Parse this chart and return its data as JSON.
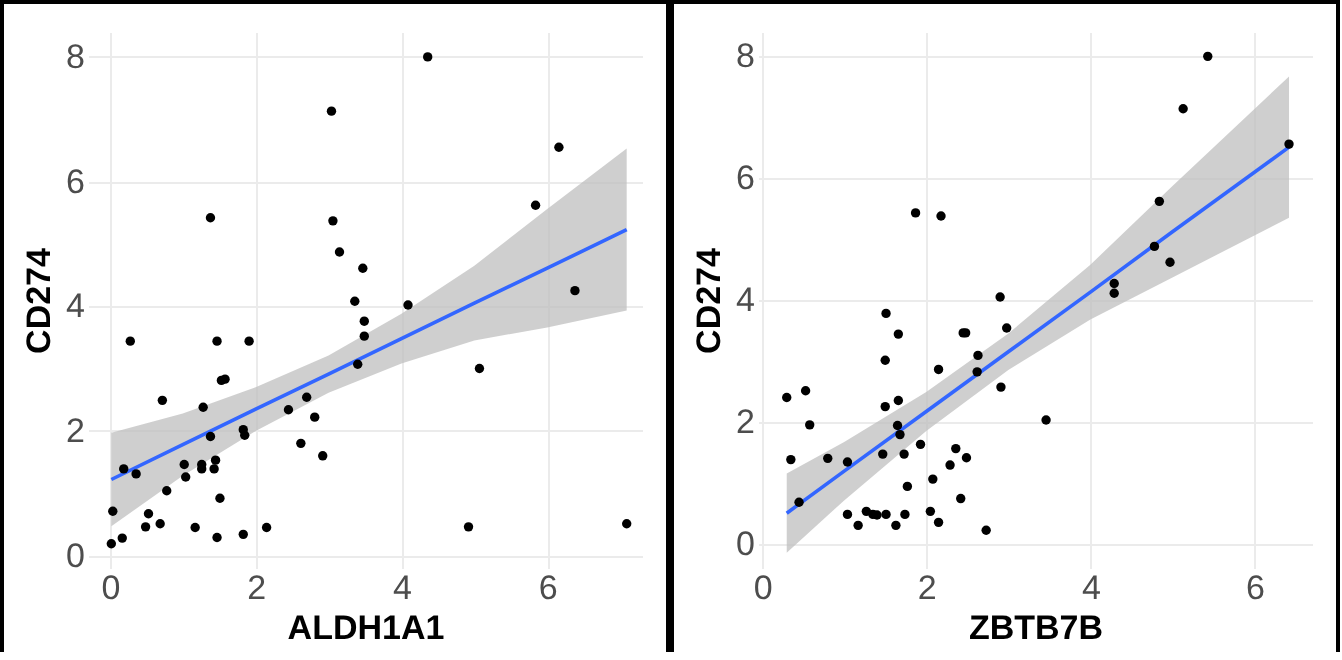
{
  "chart_data": [
    {
      "type": "scatter",
      "xlabel": "ALDH1A1",
      "ylabel": "CD274",
      "xlim": [
        -0.3,
        7.3
      ],
      "ylim": [
        -0.2,
        8.4
      ],
      "xticks": [
        0,
        2,
        4,
        6
      ],
      "yticks": [
        0,
        2,
        4,
        6,
        8
      ],
      "grid": true,
      "series": [
        {
          "type": "scatter",
          "marker": "circle",
          "color": "#000000",
          "x": [
            0.02,
            0.04,
            0.17,
            0.19,
            0.28,
            0.36,
            0.49,
            0.53,
            0.69,
            0.72,
            0.78,
            1.02,
            1.04,
            1.17,
            1.28,
            1.26,
            1.26,
            1.38,
            1.38,
            1.43,
            1.45,
            1.47,
            1.47,
            1.51,
            1.53,
            1.58,
            1.83,
            1.85,
            1.83,
            1.91,
            2.15,
            2.45,
            2.62,
            2.7,
            2.81,
            2.92,
            3.04,
            3.06,
            3.15,
            3.36,
            3.4,
            3.47,
            3.49,
            3.49,
            4.09,
            4.36,
            4.92,
            5.07,
            5.84,
            6.16,
            6.38,
            7.09
          ],
          "values": [
            0.19,
            0.71,
            0.28,
            1.39,
            3.44,
            1.31,
            0.46,
            0.67,
            0.51,
            2.49,
            1.04,
            1.46,
            1.26,
            0.45,
            2.38,
            1.39,
            1.46,
            5.42,
            1.91,
            1.39,
            1.53,
            3.44,
            0.29,
            0.92,
            2.81,
            2.83,
            2.02,
            1.93,
            0.34,
            3.44,
            0.45,
            2.34,
            1.8,
            2.54,
            2.22,
            1.6,
            7.13,
            5.37,
            4.87,
            4.08,
            3.07,
            4.61,
            3.76,
            3.52,
            4.02,
            8.0,
            0.46,
            3.0,
            5.62,
            6.55,
            4.25,
            0.51
          ]
        },
        {
          "type": "line",
          "color": "#3366ff",
          "x": [
            0.02,
            1,
            2,
            3,
            4,
            5,
            6,
            7.09
          ],
          "values": [
            1.22,
            1.78,
            2.35,
            2.91,
            3.48,
            4.05,
            4.61,
            5.23
          ],
          "lower": [
            0.47,
            1.28,
            2.0,
            2.61,
            3.08,
            3.45,
            3.66,
            3.93
          ],
          "upper": [
            1.97,
            2.28,
            2.7,
            3.21,
            3.88,
            4.65,
            5.56,
            6.53
          ]
        }
      ]
    },
    {
      "type": "scatter",
      "xlabel": "ZBTB7B",
      "ylabel": "CD274",
      "xlim": [
        -0.05,
        6.7
      ],
      "ylim": [
        -0.4,
        8.4
      ],
      "xticks": [
        0,
        2,
        4,
        6
      ],
      "yticks": [
        0,
        2,
        4,
        6,
        8
      ],
      "grid": true,
      "series": [
        {
          "type": "scatter",
          "marker": "circle",
          "color": "#000000",
          "x": [
            0.3,
            0.35,
            0.45,
            0.53,
            0.58,
            0.8,
            1.04,
            1.04,
            1.17,
            1.27,
            1.35,
            1.4,
            1.47,
            1.5,
            1.51,
            1.5,
            1.51,
            1.63,
            1.65,
            1.66,
            1.66,
            1.68,
            1.73,
            1.74,
            1.77,
            1.87,
            1.93,
            2.05,
            2.08,
            2.15,
            2.15,
            2.18,
            2.29,
            2.36,
            2.42,
            2.45,
            2.48,
            2.49,
            2.63,
            2.62,
            2.73,
            2.9,
            2.91,
            2.98,
            3.46,
            4.29,
            4.29,
            4.78,
            4.84,
            4.97,
            5.13,
            5.43,
            6.42
          ],
          "values": [
            2.4,
            1.38,
            0.68,
            2.51,
            1.95,
            1.4,
            1.34,
            0.48,
            0.3,
            0.53,
            0.48,
            0.47,
            1.47,
            2.25,
            3.78,
            3.01,
            0.48,
            0.3,
            1.94,
            2.35,
            3.44,
            1.79,
            1.47,
            0.48,
            0.94,
            5.43,
            1.63,
            0.53,
            1.06,
            2.86,
            0.35,
            5.38,
            1.29,
            1.56,
            0.74,
            3.46,
            3.46,
            1.41,
            3.09,
            2.82,
            0.22,
            4.05,
            2.57,
            3.54,
            2.03,
            4.27,
            4.11,
            4.88,
            5.62,
            4.62,
            7.14,
            8.0,
            6.56
          ]
        },
        {
          "type": "line",
          "color": "#3366ff",
          "x": [
            0.3,
            1,
            2,
            3,
            4,
            5,
            6.42
          ],
          "values": [
            0.5,
            1.19,
            2.17,
            3.15,
            4.13,
            5.12,
            6.51
          ],
          "lower": [
            -0.15,
            0.71,
            1.85,
            2.85,
            3.68,
            4.37,
            5.35
          ],
          "upper": [
            1.15,
            1.67,
            2.49,
            3.45,
            4.58,
            5.87,
            7.67
          ]
        }
      ]
    }
  ]
}
